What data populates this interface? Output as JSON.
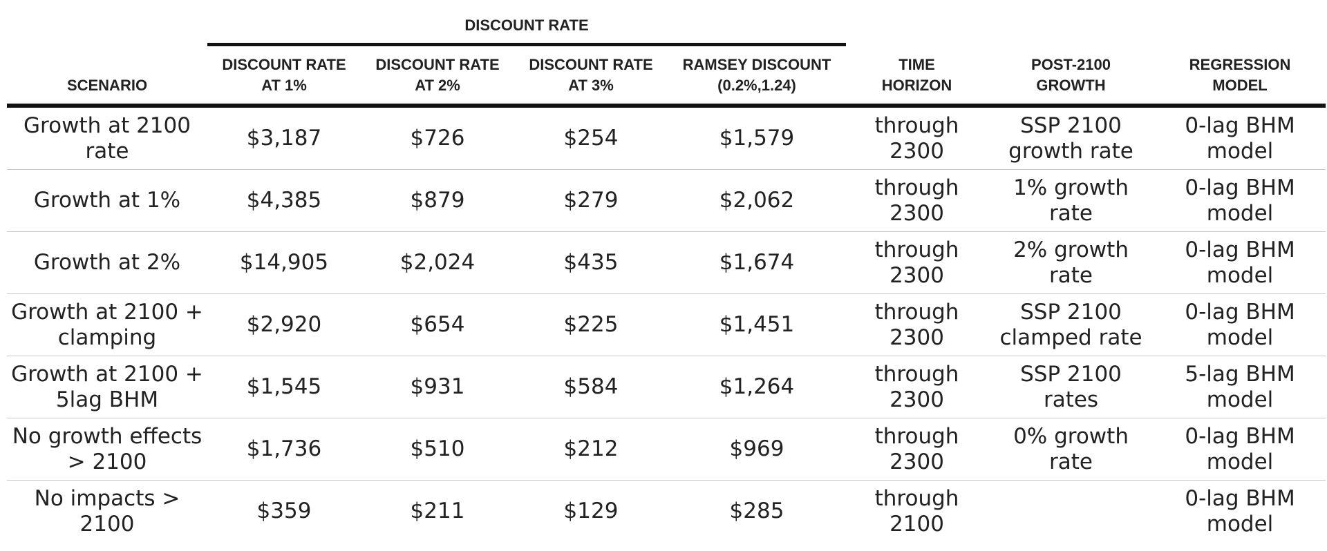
{
  "header": {
    "group_label": "DISCOUNT RATE",
    "columns": [
      "SCENARIO",
      "DISCOUNT RATE AT 1%",
      "DISCOUNT RATE AT 2%",
      "DISCOUNT RATE AT 3%",
      "RAMSEY DISCOUNT (0.2%,1.24)",
      "TIME HORIZON",
      "POST-2100 GROWTH",
      "REGRESSION MODEL"
    ],
    "column_lines": [
      [
        "SCENARIO"
      ],
      [
        "DISCOUNT RATE",
        "AT 1%"
      ],
      [
        "DISCOUNT RATE",
        "AT 2%"
      ],
      [
        "DISCOUNT RATE",
        "AT 3%"
      ],
      [
        "RAMSEY DISCOUNT",
        "(0.2%,1.24)"
      ],
      [
        "TIME",
        "HORIZON"
      ],
      [
        "POST-2100",
        "GROWTH"
      ],
      [
        "REGRESSION",
        "MODEL"
      ]
    ]
  },
  "rows": [
    {
      "scenario": "Growth at 2100 rate",
      "dr1": "$3,187",
      "dr2": "$726",
      "dr3": "$254",
      "ramsey": "$1,579",
      "time_horizon": "through 2300",
      "post_2100_growth": "SSP 2100 growth rate",
      "regression_model": "0-lag BHM model"
    },
    {
      "scenario": "Growth at 1%",
      "dr1": "$4,385",
      "dr2": "$879",
      "dr3": "$279",
      "ramsey": "$2,062",
      "time_horizon": "through 2300",
      "post_2100_growth": "1% growth rate",
      "regression_model": "0-lag BHM model"
    },
    {
      "scenario": "Growth at 2%",
      "dr1": "$14,905",
      "dr2": "$2,024",
      "dr3": "$435",
      "ramsey": "$1,674",
      "time_horizon": "through 2300",
      "post_2100_growth": "2% growth rate",
      "regression_model": "0-lag BHM model"
    },
    {
      "scenario": "Growth at 2100 + clamping",
      "dr1": "$2,920",
      "dr2": "$654",
      "dr3": "$225",
      "ramsey": "$1,451",
      "time_horizon": "through 2300",
      "post_2100_growth": "SSP 2100 clamped rate",
      "regression_model": "0-lag BHM model"
    },
    {
      "scenario": "Growth at 2100 + 5lag BHM",
      "dr1": "$1,545",
      "dr2": "$931",
      "dr3": "$584",
      "ramsey": "$1,264",
      "time_horizon": "through 2300",
      "post_2100_growth": "SSP 2100 rates",
      "regression_model": "5-lag BHM model"
    },
    {
      "scenario": "No growth effects > 2100",
      "dr1": "$1,736",
      "dr2": "$510",
      "dr3": "$212",
      "ramsey": "$969",
      "time_horizon": "through 2300",
      "post_2100_growth": "0% growth rate",
      "regression_model": "0-lag BHM model"
    },
    {
      "scenario": "No impacts > 2100",
      "dr1": "$359",
      "dr2": "$211",
      "dr3": "$129",
      "ramsey": "$285",
      "time_horizon": "through 2100",
      "post_2100_growth": "",
      "regression_model": "0-lag BHM model"
    }
  ]
}
